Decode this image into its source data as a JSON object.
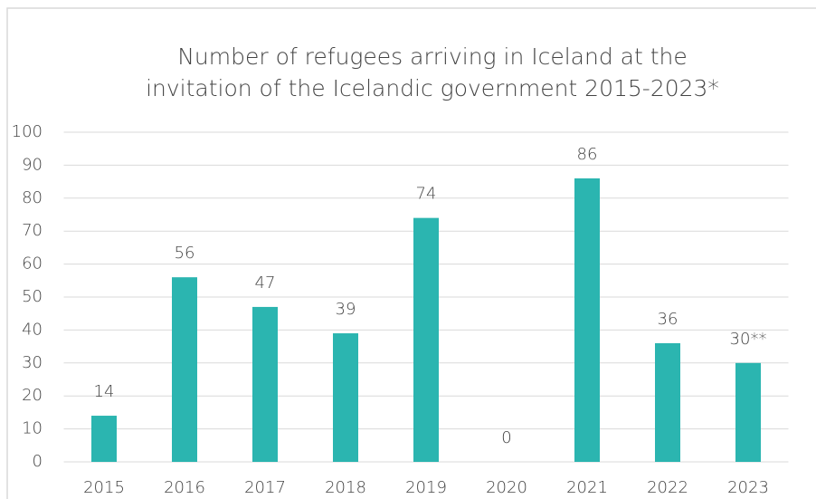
{
  "chart_data": {
    "type": "bar",
    "title": [
      "Number of refugees arriving in Iceland at the",
      "invitation of the Icelandic government 2015-2023*"
    ],
    "categories": [
      "2015",
      "2016",
      "2017",
      "2018",
      "2019",
      "2020",
      "2021",
      "2022",
      "2023"
    ],
    "values": [
      14,
      56,
      47,
      39,
      74,
      0,
      86,
      36,
      30
    ],
    "value_labels": [
      "14",
      "56",
      "47",
      "39",
      "74",
      "0",
      "86",
      "36",
      "30**"
    ],
    "color": "#2bb5b0",
    "ylim": [
      0,
      100
    ],
    "yticks": [
      0,
      10,
      20,
      30,
      40,
      50,
      60,
      70,
      80,
      90,
      100
    ],
    "grid": true
  }
}
